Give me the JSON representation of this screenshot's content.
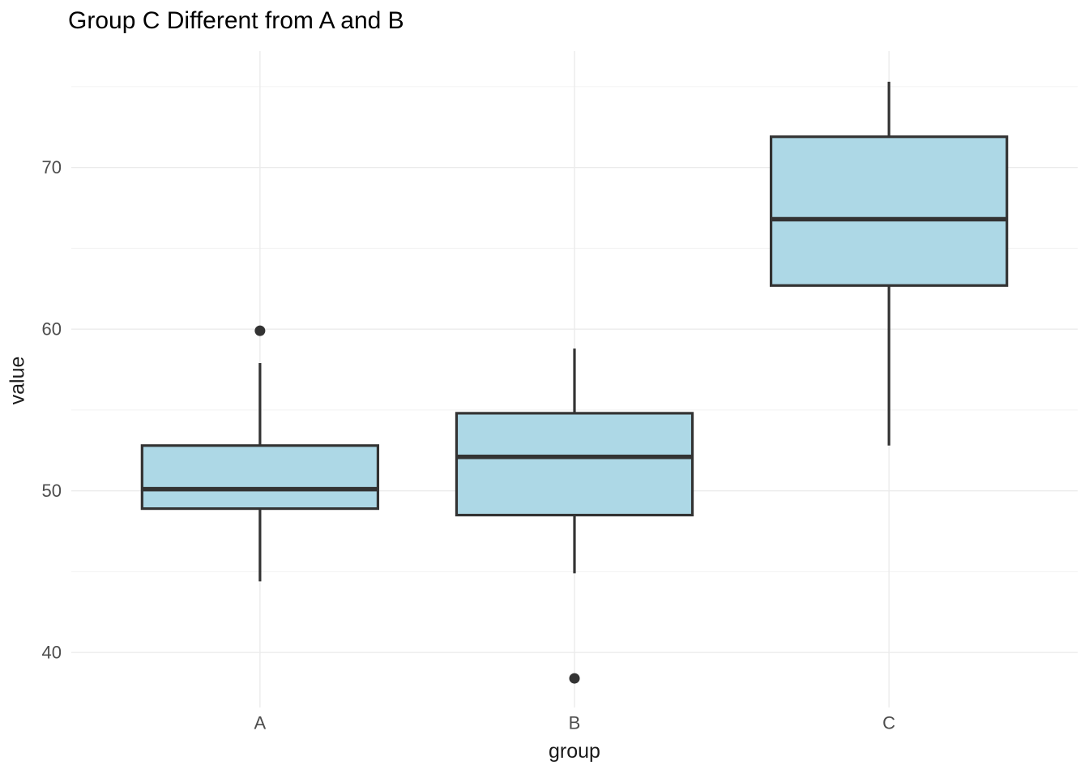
{
  "chart_data": {
    "type": "boxplot",
    "title": "Group C Different from A and B",
    "xlabel": "group",
    "ylabel": "value",
    "categories": [
      "A",
      "B",
      "C"
    ],
    "y_ticks": [
      40,
      50,
      60,
      70
    ],
    "y_minor_ticks": [
      45,
      55,
      65,
      75
    ],
    "ylim": [
      36.6,
      77.2
    ],
    "grid": "major-and-minor",
    "legend": "none",
    "series": [
      {
        "group": "A",
        "whisker_low": 44.4,
        "q1": 48.9,
        "median": 50.1,
        "q3": 52.8,
        "whisker_high": 57.9,
        "outliers": [
          59.9
        ]
      },
      {
        "group": "B",
        "whisker_low": 44.9,
        "q1": 48.5,
        "median": 52.1,
        "q3": 54.8,
        "whisker_high": 58.8,
        "outliers": [
          38.4
        ]
      },
      {
        "group": "C",
        "whisker_low": 52.8,
        "q1": 62.7,
        "median": 66.8,
        "q3": 71.9,
        "whisker_high": 75.3,
        "outliers": []
      }
    ],
    "colors": {
      "box_fill": "#ADD8E6",
      "box_stroke": "#333333",
      "median_stroke": "#333333",
      "outlier_fill": "#333333",
      "grid_major": "#EBEBEB",
      "grid_minor": "#F2F2F2",
      "tick_label": "#4D4D4D",
      "title_color": "#000000",
      "axis_title_color": "#1A1A1A",
      "background": "#FFFFFF"
    }
  }
}
